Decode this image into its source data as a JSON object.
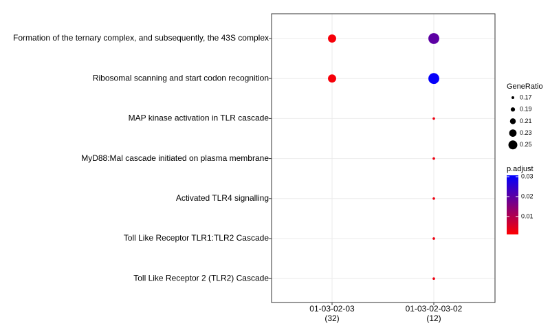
{
  "chart_data": {
    "type": "dot",
    "categories": [
      "01-03-02-03",
      "01-03-02-03-02"
    ],
    "category_counts": [
      "(32)",
      "(12)"
    ],
    "rows": [
      "Formation of the ternary complex, and subsequently, the 43S complex",
      "Ribosomal scanning and start codon recognition",
      "MAP kinase activation in TLR cascade",
      "MyD88:Mal cascade initiated on plasma membrane",
      "Activated TLR4 signalling",
      "Toll Like Receptor TLR1:TLR2 Cascade",
      "Toll Like Receptor 2 (TLR2) Cascade"
    ],
    "gene_ratio": [
      [
        0.24,
        0.275
      ],
      [
        0.24,
        0.275
      ],
      [
        null,
        0.167
      ],
      [
        null,
        0.167
      ],
      [
        null,
        0.167
      ],
      [
        null,
        0.167
      ],
      [
        null,
        0.167
      ]
    ],
    "p_adjust": [
      [
        0.002,
        0.02
      ],
      [
        0.002,
        0.03
      ],
      [
        null,
        0.003
      ],
      [
        null,
        0.003
      ],
      [
        null,
        0.003
      ],
      [
        null,
        0.003
      ],
      [
        null,
        0.003
      ]
    ],
    "size_title": "GeneRatio",
    "size_breaks": [
      0.17,
      0.19,
      0.21,
      0.23,
      0.25
    ],
    "color_title": "p.adjust",
    "color_lim": [
      0.001,
      0.0307
    ],
    "color_ticks": [
      0.01,
      0.02,
      0.03
    ],
    "color_low": "#ff0000",
    "color_high": "#0000ff",
    "grid": true
  }
}
